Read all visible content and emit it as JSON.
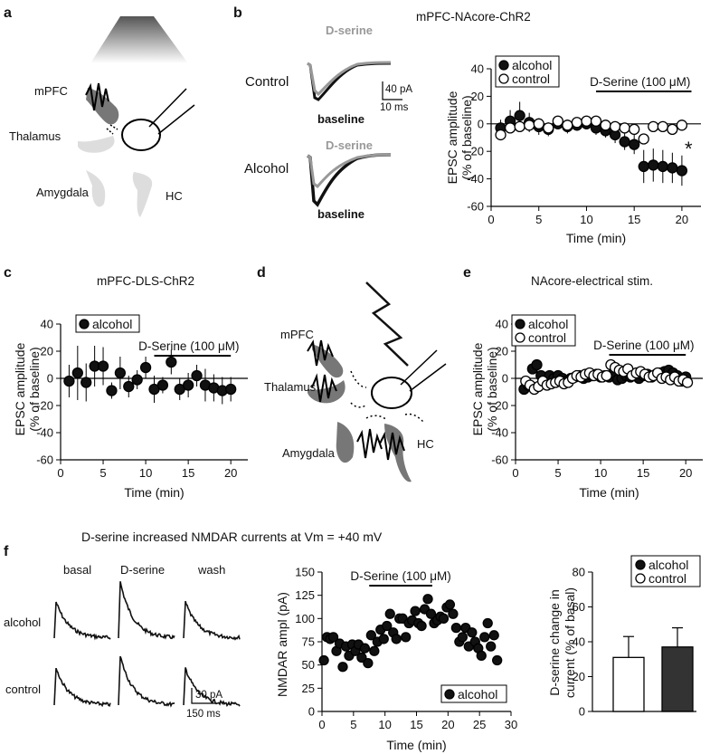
{
  "panels": {
    "a": {
      "label": "a",
      "regions": {
        "mpfc": "mPFC",
        "thalamus": "Thalamus",
        "amygdala": "Amygdala",
        "hc": "HC"
      }
    },
    "b": {
      "label": "b",
      "title": "mPFC-NAcore-ChR2",
      "traces": {
        "control_label": "Control",
        "alcohol_label": "Alcohol",
        "dserine_label": "D-serine",
        "baseline_label": "baseline",
        "scale_amp": "40 pA",
        "scale_time": "10 ms"
      }
    },
    "c": {
      "label": "c",
      "title": "mPFC-DLS-ChR2"
    },
    "d": {
      "label": "d",
      "regions": {
        "mpfc": "mPFC",
        "thalamus": "Thalamus",
        "amygdala": "Amygdala",
        "hc": "HC"
      }
    },
    "e": {
      "label": "e",
      "title": "NAcore-electrical stim."
    },
    "f": {
      "label": "f",
      "title": "D-serine increased NMDAR currents at Vm = +40 mV",
      "traces": {
        "col_basal": "basal",
        "col_dserine": "D-serine",
        "col_wash": "wash",
        "row_alcohol": "alcohol",
        "row_control": "control",
        "scale_amp": "30 pA",
        "scale_time": "150 ms"
      }
    }
  },
  "chart_data": [
    {
      "id": "b_plot",
      "type": "scatter",
      "xlabel": "Time (min)",
      "ylabel": "EPSC amplitude (% of baseline)",
      "xlim": [
        0,
        22
      ],
      "ylim": [
        -60,
        40
      ],
      "xticks": [
        "0",
        "5",
        "10",
        "15",
        "20"
      ],
      "yticks": [
        "40",
        "20",
        "0",
        "-20",
        "-40",
        "-60"
      ],
      "bar_label": "D-Serine (100 μM)",
      "bar_range": [
        11,
        21
      ],
      "significance": "*",
      "legend_position": "top-left",
      "series": [
        {
          "name": "alcohol",
          "marker": "filled",
          "x": [
            1,
            2,
            3,
            4,
            5,
            6,
            7,
            8,
            9,
            10,
            11,
            12,
            13,
            14,
            15,
            16,
            17,
            18,
            19,
            20
          ],
          "y": [
            -3,
            2,
            6,
            1,
            -2,
            -4,
            0,
            -2,
            -1,
            0,
            -3,
            -5,
            -8,
            -13,
            -15,
            -31,
            -30,
            -31,
            -32,
            -34
          ],
          "err": [
            6,
            8,
            10,
            7,
            6,
            5,
            4,
            5,
            4,
            4,
            5,
            5,
            6,
            6,
            7,
            12,
            12,
            12,
            11,
            11
          ]
        },
        {
          "name": "control",
          "marker": "open",
          "x": [
            1,
            2,
            3,
            4,
            5,
            6,
            7,
            8,
            9,
            10,
            11,
            12,
            13,
            14,
            15,
            16,
            17,
            18,
            19,
            20
          ],
          "y": [
            -8,
            -3,
            -2,
            -1,
            0,
            -3,
            2,
            -1,
            1,
            2,
            2,
            -1,
            -2,
            -3,
            -4,
            -11,
            -2,
            -2,
            -4,
            -1
          ],
          "err": [
            3,
            3,
            3,
            3,
            3,
            3,
            3,
            3,
            3,
            3,
            3,
            3,
            3,
            3,
            3,
            3,
            3,
            3,
            3,
            3
          ]
        }
      ]
    },
    {
      "id": "c_plot",
      "type": "scatter",
      "xlabel": "Time (min)",
      "ylabel": "EPSC amplitude (% of baseline)",
      "xlim": [
        0,
        22
      ],
      "ylim": [
        -60,
        40
      ],
      "xticks": [
        "0",
        "5",
        "10",
        "15",
        "20"
      ],
      "yticks": [
        "40",
        "20",
        "0",
        "-20",
        "-40",
        "-60"
      ],
      "bar_label": "D-Serine (100 μM)",
      "bar_range": [
        11,
        20
      ],
      "legend_position": "top-left",
      "series": [
        {
          "name": "alcohol",
          "marker": "filled",
          "x": [
            1,
            2,
            3,
            4,
            5,
            6,
            7,
            8,
            9,
            10,
            11,
            12,
            13,
            14,
            15,
            16,
            17,
            18,
            19,
            20
          ],
          "y": [
            -2,
            4,
            -3,
            9,
            9,
            -9,
            4,
            -6,
            -1,
            8,
            -8,
            -5,
            12,
            -8,
            -5,
            2,
            -5,
            -7,
            -9,
            -8
          ],
          "err": [
            12,
            20,
            14,
            15,
            14,
            6,
            12,
            8,
            7,
            8,
            10,
            6,
            9,
            8,
            9,
            8,
            12,
            10,
            10,
            9
          ]
        }
      ]
    },
    {
      "id": "e_plot",
      "type": "scatter",
      "xlabel": "Time (min)",
      "ylabel": "EPSC amplitude (% of baseline)",
      "xlim": [
        0,
        22
      ],
      "ylim": [
        -60,
        40
      ],
      "xticks": [
        "0",
        "5",
        "10",
        "15",
        "20"
      ],
      "yticks": [
        "40",
        "20",
        "0",
        "-20",
        "-40",
        "-60"
      ],
      "bar_label": "D-Serine (100 μM)",
      "bar_range": [
        11,
        20
      ],
      "legend_position": "top-left",
      "series": [
        {
          "name": "alcohol",
          "marker": "filled",
          "x": [
            1,
            1.5,
            2,
            2.5,
            3,
            3.5,
            4,
            4.5,
            5,
            5.5,
            6,
            6.5,
            7,
            7.5,
            8,
            8.5,
            9,
            9.5,
            10,
            10.5,
            11,
            11.5,
            12,
            12.5,
            13,
            13.5,
            14,
            14.5,
            15,
            15.5,
            16,
            16.5,
            17,
            17.5,
            18,
            18.5,
            19,
            19.5,
            20
          ],
          "y": [
            -8,
            -5,
            7,
            10,
            2,
            -3,
            2,
            0,
            2,
            0,
            -2,
            0,
            1,
            2,
            0,
            1,
            2,
            3,
            1,
            2,
            1,
            4,
            -1,
            0,
            2,
            1,
            3,
            0,
            2,
            3,
            1,
            3,
            4,
            5,
            6,
            4,
            2,
            -2,
            1
          ],
          "err": [
            4,
            3,
            4,
            4,
            4,
            3,
            3,
            3,
            3,
            3,
            3,
            3,
            3,
            3,
            3,
            3,
            3,
            3,
            3,
            3,
            3,
            3,
            3,
            3,
            3,
            3,
            3,
            3,
            3,
            3,
            3,
            3,
            3,
            3,
            3,
            3,
            3,
            3,
            3
          ]
        },
        {
          "name": "control",
          "marker": "open",
          "x": [
            1.2,
            1.7,
            2.2,
            2.7,
            3.2,
            3.7,
            4.2,
            4.7,
            5.2,
            5.7,
            6.2,
            6.7,
            7.2,
            7.7,
            8.2,
            8.7,
            9.2,
            9.7,
            10.2,
            10.7,
            11.2,
            11.7,
            12.2,
            12.7,
            13.2,
            13.7,
            14.2,
            14.7,
            15.2,
            15.7,
            16.2,
            16.7,
            17.2,
            17.7,
            18.2,
            18.7,
            19.2,
            19.7,
            20.2
          ],
          "y": [
            -2,
            -5,
            -8,
            -6,
            -2,
            -5,
            -4,
            -3,
            -2,
            -4,
            -3,
            0,
            2,
            1,
            3,
            4,
            2,
            3,
            1,
            2,
            10,
            8,
            6,
            5,
            7,
            2,
            4,
            5,
            3,
            1,
            2,
            4,
            0,
            1,
            -1,
            1,
            -2,
            -1,
            -3
          ],
          "err": [
            4,
            4,
            4,
            4,
            4,
            3,
            3,
            3,
            3,
            3,
            3,
            3,
            3,
            3,
            3,
            3,
            3,
            3,
            3,
            3,
            3,
            3,
            3,
            3,
            3,
            3,
            3,
            3,
            3,
            3,
            3,
            3,
            3,
            3,
            3,
            3,
            3,
            3,
            3
          ]
        }
      ]
    },
    {
      "id": "f_plot",
      "type": "scatter",
      "xlabel": "Time (min)",
      "ylabel": "NMDAR ampl (pA)",
      "xlim": [
        0,
        30
      ],
      "ylim": [
        0,
        150
      ],
      "xticks": [
        "0",
        "5",
        "10",
        "15",
        "20",
        "25",
        "30"
      ],
      "yticks": [
        "150",
        "125",
        "100",
        "75",
        "50",
        "25",
        "0"
      ],
      "bar_label": "D-Serine (100 μM)",
      "bar_range": [
        7.5,
        17.5
      ],
      "legend_position": "bottom-right",
      "series": [
        {
          "name": "alcohol",
          "marker": "filled",
          "x": [
            0.3,
            0.8,
            1.3,
            1.8,
            2.3,
            2.8,
            3.3,
            3.8,
            4.3,
            4.8,
            5.3,
            5.8,
            6.3,
            6.8,
            7.3,
            7.8,
            8.3,
            8.8,
            9.3,
            9.8,
            10.3,
            10.8,
            11.3,
            11.8,
            12.3,
            12.8,
            13.3,
            13.8,
            14.3,
            14.8,
            15.3,
            15.8,
            16.3,
            16.8,
            17.3,
            17.8,
            18.3,
            18.8,
            19.3,
            19.8,
            20.3,
            20.8,
            21.3,
            21.8,
            22.3,
            22.8,
            23.3,
            23.8,
            24.3,
            24.8,
            25.3,
            25.8,
            26.3,
            26.8,
            27.3,
            27.8
          ],
          "y": [
            55,
            80,
            78,
            80,
            65,
            73,
            48,
            70,
            60,
            72,
            65,
            72,
            58,
            68,
            52,
            82,
            65,
            75,
            88,
            78,
            92,
            105,
            85,
            78,
            100,
            100,
            80,
            95,
            98,
            108,
            95,
            92,
            110,
            121,
            105,
            95,
            98,
            102,
            100,
            112,
            115,
            105,
            90,
            75,
            80,
            90,
            70,
            85,
            75,
            68,
            60,
            80,
            95,
            70,
            82,
            55
          ]
        }
      ]
    },
    {
      "id": "f_bar",
      "type": "bar",
      "ylabel": "D-serine change in current (% of basal)",
      "ylim": [
        0,
        80
      ],
      "yticks": [
        "80",
        "60",
        "40",
        "20",
        "0"
      ],
      "legend_position": "top-right",
      "series": [
        {
          "name": "alcohol",
          "color": "#333333",
          "values": [
            37
          ],
          "err": [
            11
          ]
        },
        {
          "name": "control",
          "color": "#ffffff",
          "values": [
            31
          ],
          "err": [
            12
          ]
        }
      ]
    }
  ]
}
